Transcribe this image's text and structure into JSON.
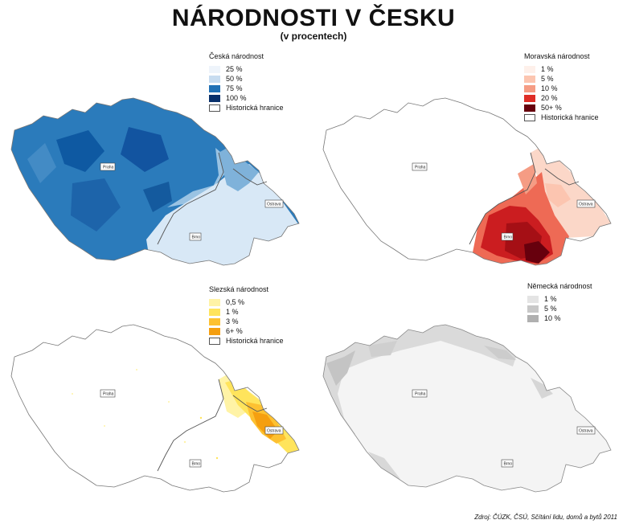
{
  "title": "NÁRODNOSTI V ČESKU",
  "subtitle": "(v procentech)",
  "source": "Zdroj: ČÚZK, ČSÚ, Sčítání lidu, domů a bytů 2011",
  "cities": {
    "praha": "Praha",
    "brno": "Brno",
    "ostrava": "Ostrava"
  },
  "maps": [
    {
      "id": "ceska",
      "legend_title": "Česká národnost",
      "legend": [
        {
          "label": "25 %",
          "color": "#eef4fb"
        },
        {
          "label": "50 %",
          "color": "#c7dcf0"
        },
        {
          "label": "75 %",
          "color": "#2171b5"
        },
        {
          "label": "100 %",
          "color": "#08306b"
        }
      ],
      "border_label": "Historická hranice"
    },
    {
      "id": "moravska",
      "legend_title": "Moravská národnost",
      "legend": [
        {
          "label": "1 %",
          "color": "#fef0ea"
        },
        {
          "label": "5 %",
          "color": "#fcc5b0"
        },
        {
          "label": "10 %",
          "color": "#f59c84"
        },
        {
          "label": "20 %",
          "color": "#de2d26"
        },
        {
          "label": "50+ %",
          "color": "#67000d"
        }
      ],
      "border_label": "Historická hranice"
    },
    {
      "id": "slezska",
      "legend_title": "Slezská národnost",
      "legend": [
        {
          "label": "0,5 %",
          "color": "#fff3a6"
        },
        {
          "label": "1 %",
          "color": "#ffe45c"
        },
        {
          "label": "3 %",
          "color": "#fdc131"
        },
        {
          "label": "6+ %",
          "color": "#f59f10"
        }
      ],
      "border_label": "Historická hranice"
    },
    {
      "id": "nemecka",
      "legend_title": "Německá národnost",
      "legend": [
        {
          "label": "1 %",
          "color": "#e4e4e4"
        },
        {
          "label": "5 %",
          "color": "#c8c8c8"
        },
        {
          "label": "10 %",
          "color": "#b0b0b0"
        }
      ]
    }
  ]
}
